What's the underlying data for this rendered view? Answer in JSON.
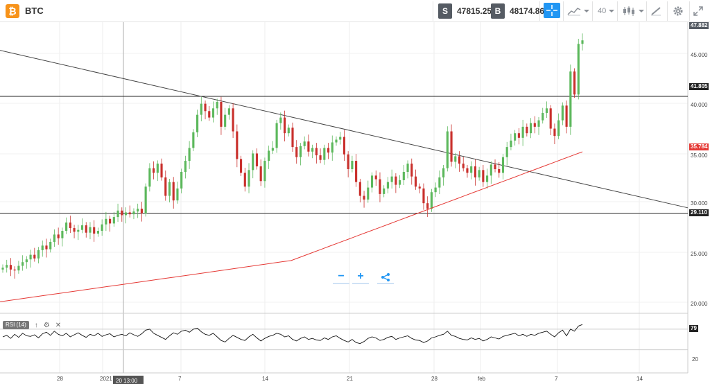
{
  "toolbar": {
    "coin_icon": "bitcoin-icon",
    "symbol": "BTC",
    "sell_tag": "S",
    "sell_price": "47815.25",
    "buy_tag": "B",
    "buy_price": "48174.86",
    "interval": "40",
    "buttons": [
      "crosshair-icon",
      "line-chart-icon",
      "candlestick-icon",
      "draw-tools-icon",
      "gear-icon",
      "fullscreen-icon"
    ]
  },
  "price_axis": {
    "ticks": [
      "45.000",
      "40.000",
      "35.000",
      "30.000",
      "25.000",
      "20.000"
    ],
    "current_price_tag": "47.882",
    "resistance_tag": "41.805",
    "support_tag": "29.110",
    "ma_tag": "35.784"
  },
  "time_axis": {
    "ticks": [
      "28",
      "2021",
      "7",
      "14",
      "21",
      "28",
      "feb",
      "7",
      "14"
    ],
    "cursor_tag": "20 13:00"
  },
  "rsi": {
    "label": "RSI (14)",
    "ticks": [
      "79",
      "20"
    ],
    "current_value": "79",
    "actions": [
      "↑",
      "⚙",
      "✕"
    ]
  },
  "zoom": {
    "minus": "−",
    "plus": "+",
    "share_icon": "share-icon"
  },
  "colors": {
    "up": "#5cb85c",
    "down": "#c9302c",
    "ma": "#e53935",
    "accent": "#2196f3",
    "coin": "#f7931a"
  },
  "chart_data": {
    "type": "candlestick",
    "ylim": [
      19000,
      48500
    ],
    "closes": [
      23200,
      23500,
      23000,
      22900,
      23400,
      23800,
      24100,
      24600,
      24200,
      25100,
      25600,
      25200,
      26000,
      26800,
      26400,
      27200,
      28100,
      27500,
      27100,
      27300,
      27800,
      27000,
      27600,
      26900,
      27200,
      27900,
      28500,
      28000,
      28700,
      29400,
      28900,
      29200,
      29000,
      29300,
      29600,
      29100,
      32000,
      34000,
      33500,
      34500,
      33000,
      31000,
      32500,
      30500,
      31800,
      33600,
      34800,
      36200,
      37900,
      39800,
      41000,
      40200,
      39500,
      40500,
      41200,
      38500,
      39800,
      40500,
      38000,
      35000,
      33500,
      32000,
      33800,
      35600,
      34200,
      32600,
      34800,
      35900,
      36200,
      38900,
      39500,
      37800,
      38400,
      36300,
      35200,
      36400,
      36900,
      35800,
      36200,
      35400,
      34900,
      36200,
      35700,
      36800,
      37100,
      37400,
      35500,
      33900,
      34800,
      32500,
      31000,
      30600,
      31900,
      33200,
      32800,
      31200,
      31800,
      32500,
      33100,
      32200,
      32700,
      33600,
      34500,
      33100,
      32000,
      31800,
      30200,
      29600,
      31400,
      31900,
      33000,
      34000,
      38000,
      34700,
      35300,
      34500,
      34000,
      33500,
      34200,
      33000,
      33800,
      32500,
      33200,
      34400,
      33900,
      33500,
      35200,
      36300,
      37000,
      37800,
      37300,
      38500,
      37800,
      38900,
      38500,
      39200,
      40000,
      40500,
      38300,
      37500,
      39200,
      40800,
      38500,
      44500,
      42000,
      47500,
      47882
    ],
    "sma_start": 19500,
    "sma_end": 35784,
    "trendline_start": 46800,
    "trendline_end": 29700,
    "resistance": 41805,
    "support": 29110,
    "rsi": [
      55,
      58,
      52,
      60,
      54,
      62,
      57,
      56,
      59,
      53,
      61,
      64,
      58,
      66,
      60,
      57,
      62,
      55,
      59,
      63,
      58,
      54,
      60,
      57,
      62,
      56,
      59,
      61,
      55,
      58,
      60,
      57,
      63,
      59,
      56,
      61,
      68,
      70,
      62,
      58,
      54,
      50,
      57,
      63,
      60,
      66,
      68,
      64,
      70,
      72,
      65,
      60,
      58,
      62,
      55,
      48,
      45,
      52,
      58,
      54,
      50,
      48,
      55,
      60,
      53,
      47,
      52,
      56,
      58,
      62,
      60,
      55,
      57,
      50,
      47,
      52,
      55,
      50,
      52,
      49,
      48,
      53,
      50,
      55,
      57,
      52,
      48,
      45,
      50,
      44,
      42,
      46,
      52,
      55,
      53,
      48,
      50,
      54,
      56,
      50,
      53,
      55,
      57,
      52,
      49,
      48,
      44,
      47,
      53,
      55,
      58,
      60,
      66,
      58,
      56,
      52,
      50,
      49,
      53,
      50,
      52,
      47,
      50,
      55,
      53,
      51,
      56,
      58,
      60,
      62,
      57,
      60,
      56,
      60,
      58,
      62,
      64,
      66,
      60,
      55,
      63,
      68,
      57,
      70,
      66,
      76,
      79
    ]
  }
}
